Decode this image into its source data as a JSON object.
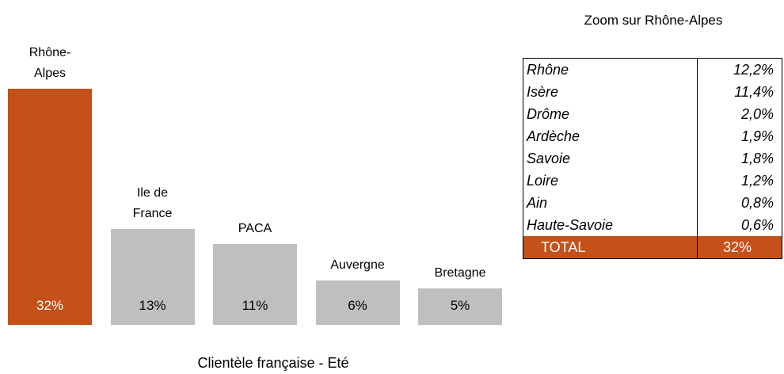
{
  "chart_data": {
    "type": "bar",
    "title": "Clientèle française - Eté",
    "categories": [
      "Rhône-Alpes",
      "Ile de France",
      "PACA",
      "Auvergne",
      "Bretagne"
    ],
    "values": [
      32,
      13,
      11,
      6,
      5
    ],
    "value_labels": [
      "32%",
      "13%",
      "11%",
      "6%",
      "5%"
    ],
    "colors": [
      "#c4501a",
      "#bfbfbf",
      "#bfbfbf",
      "#bfbfbf",
      "#bfbfbf"
    ]
  },
  "table": {
    "title": "Zoom sur Rhône-Alpes",
    "rows": [
      [
        "Rhône",
        "12,2%"
      ],
      [
        "Isère",
        "11,4%"
      ],
      [
        "Drôme",
        "2,0%"
      ],
      [
        "Ardèche",
        "1,9%"
      ],
      [
        "Savoie",
        "1,8%"
      ],
      [
        "Loire",
        "1,2%"
      ],
      [
        "Ain",
        "0,8%"
      ],
      [
        "Haute-Savoie",
        "0,6%"
      ]
    ],
    "total": [
      "TOTAL",
      "32%"
    ],
    "total_color": "#c4501a"
  }
}
